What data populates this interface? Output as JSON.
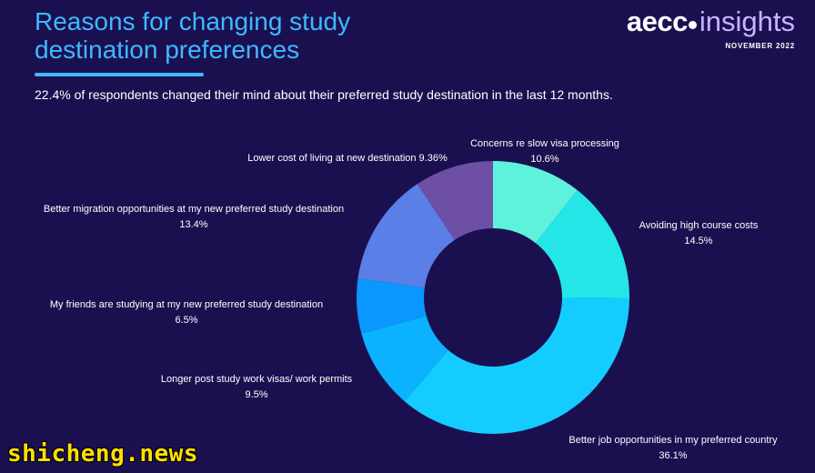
{
  "header": {
    "title_line1": "Reasons for changing study",
    "title_line2": "destination preferences",
    "subtitle": "22.4% of respondents changed their mind about their preferred study destination in the last 12 months."
  },
  "logo": {
    "brand": "aecc",
    "product": "insights",
    "date": "NOVEMBER 2022"
  },
  "watermark": "shicheng.news",
  "colors": {
    "background": "#1a1050",
    "title": "#3fb8ff"
  },
  "chart_data": {
    "type": "pie",
    "donut": true,
    "title": "",
    "slices": [
      {
        "label": "Concerns re slow visa processing",
        "value_label": "10.6%",
        "value": 10.6,
        "color": "#5ef2dd"
      },
      {
        "label": "Avoiding high course costs",
        "value_label": "14.5%",
        "value": 14.5,
        "color": "#24e6e6"
      },
      {
        "label": "Better job opportunities in my preferred country",
        "value_label": "36.1%",
        "value": 36.1,
        "color": "#14ccff"
      },
      {
        "label": "Longer post study work visas/ work permits",
        "value_label": "9.5%",
        "value": 9.5,
        "color": "#0ab2ff"
      },
      {
        "label": "My friends are studying at my new preferred study destination",
        "value_label": "6.5%",
        "value": 6.5,
        "color": "#0a97ff"
      },
      {
        "label": "Better migration opportunities at my new preferred study destination",
        "value_label": "13.4%",
        "value": 13.4,
        "color": "#5a7fe6"
      },
      {
        "label": "Lower cost of living at new destination",
        "value_label": "9.36%",
        "value": 9.36,
        "color": "#6e4fa6"
      }
    ]
  }
}
